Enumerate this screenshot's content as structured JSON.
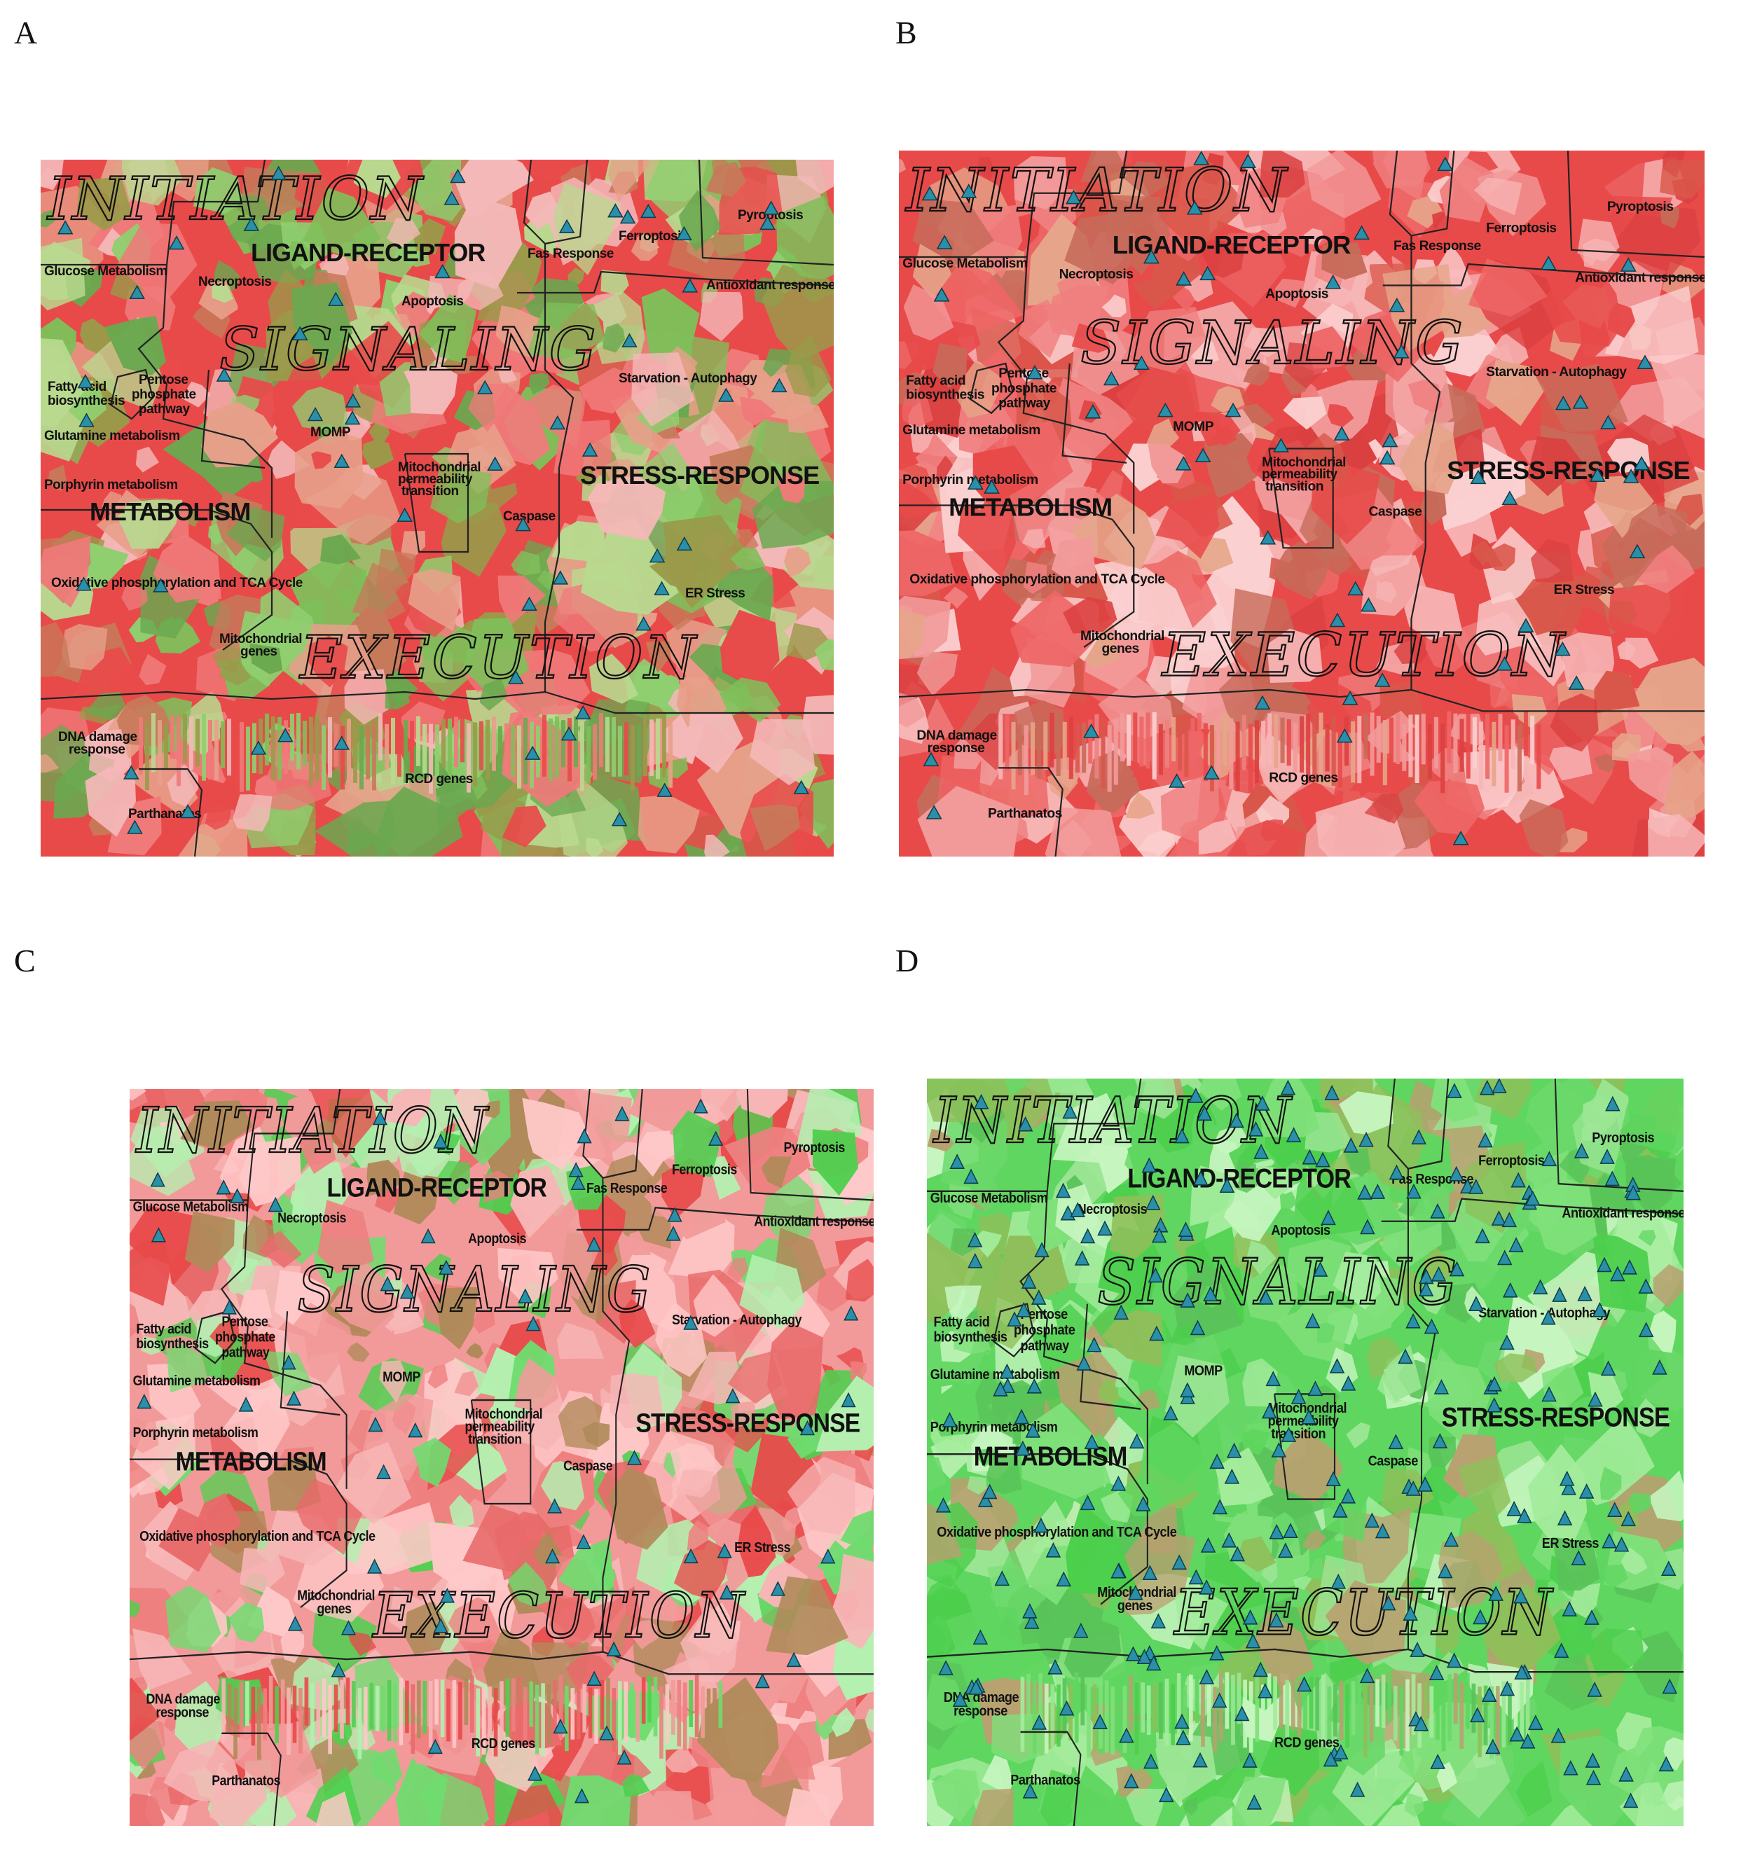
{
  "figure": {
    "panels": [
      {
        "letter": "A",
        "theme": "mixed"
      },
      {
        "letter": "B",
        "theme": "red"
      },
      {
        "letter": "C",
        "theme": "redgreen"
      },
      {
        "letter": "D",
        "theme": "green"
      }
    ]
  },
  "map_labels": {
    "big": [
      "INITIATION",
      "SIGNALING",
      "EXECUTION"
    ],
    "mid": [
      "LIGAND-RECEPTOR",
      "STRESS-RESPONSE",
      "METABOLISM"
    ],
    "small": [
      "Glucose Metabolism",
      "Necroptosis",
      "Apoptosis",
      "Fas Response",
      "Ferroptosis",
      "Pyroptosis",
      "Antioxidant response",
      "Starvation - Autophagy",
      "Fatty acid",
      "biosynthesis",
      "Pentose",
      "phosphate",
      "pathway",
      "Glutamine metabolism",
      "MOMP",
      "Mitochondrial",
      "permeability",
      "transition",
      "Caspase",
      "Porphyrin metabolism",
      "Oxidative phosphorylation and TCA Cycle",
      "ER Stress",
      "Mitochondrial",
      "genes",
      "DNA damage",
      "response",
      "RCD genes",
      "Parthanatos"
    ]
  },
  "colors": {
    "red": "#e84a4a",
    "pink": "#f29a9a",
    "light_pink": "#fbd6d6",
    "olive": "#9a9a4a",
    "green": "#5fd65f",
    "light_green": "#b4f0b0",
    "marker": "#2a8fa8"
  }
}
